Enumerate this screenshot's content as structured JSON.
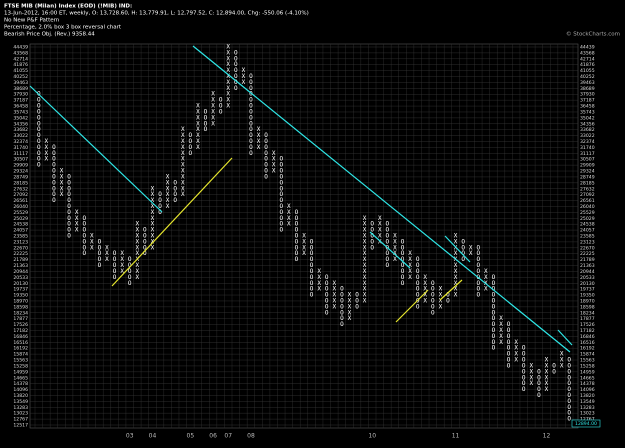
{
  "chart_data": {
    "type": "point-and-figure",
    "title": "FTSE MIB (Milan) Index (EOD) (!MIB)  IND:",
    "subtitle": "13-Jun-2012, 16:00 ET, weekly, O: 13,728.60, H: 13,779.91, L: 12,797.52, C: 12,894.00, Chg: -550.06 (-4.10%)",
    "pattern": "No New P&F Pattern",
    "settings_text": "Percentage, 2.0% box 3 box reversal chart",
    "objective": "Bearish Price Obj. (Rev.) 9358.44",
    "watermark": "© StockCharts.com",
    "last_price_label": "12894.00",
    "log_scale": true,
    "grid": true,
    "ylim": [
      12517,
      44439
    ],
    "yticks": [
      12517,
      12767,
      13023,
      13283,
      13549,
      13820,
      14096,
      14378,
      14665,
      14959,
      15258,
      15563,
      15874,
      16192,
      16516,
      16846,
      17182,
      17526,
      17877,
      18234,
      18598,
      18970,
      19350,
      19737,
      20130,
      20533,
      20944,
      21363,
      21789,
      22225,
      22670,
      23123,
      23585,
      24057,
      24538,
      25029,
      25529,
      26040,
      26561,
      27092,
      27632,
      28185,
      28749,
      29324,
      29909,
      30507,
      31117,
      31740,
      32374,
      33022,
      33682,
      34356,
      35042,
      35743,
      36458,
      37187,
      37930,
      38689,
      39463,
      40252,
      41055,
      41876,
      42714,
      43568,
      44439
    ],
    "x_color": "#ffffff",
    "o_color": "#ffffff",
    "columns": [
      {
        "type": "O",
        "low": 29909,
        "high": 37930
      },
      {
        "type": "X",
        "low": 30507,
        "high": 32374
      },
      {
        "type": "O",
        "low": 26561,
        "high": 31740
      },
      {
        "type": "X",
        "low": 27092,
        "high": 29324
      },
      {
        "type": "O",
        "low": 23585,
        "high": 28749
      },
      {
        "type": "X",
        "low": 24057,
        "high": 25529
      },
      {
        "type": "O",
        "low": 22225,
        "high": 25029
      },
      {
        "type": "X",
        "low": 22670,
        "high": 23585
      },
      {
        "type": "O",
        "low": 21363,
        "high": 23123
      },
      {
        "type": "X",
        "low": 21789,
        "high": 22670
      },
      {
        "type": "O",
        "low": 20533,
        "high": 22225
      },
      {
        "type": "X",
        "low": 20944,
        "high": 22225
      },
      {
        "type": "O",
        "low": 20130,
        "high": 21789
      },
      {
        "type": "X",
        "low": 20533,
        "high": 24538
      },
      {
        "type": "O",
        "low": 22225,
        "high": 24057
      },
      {
        "type": "X",
        "low": 22670,
        "high": 27632
      },
      {
        "type": "O",
        "low": 25529,
        "high": 27092
      },
      {
        "type": "X",
        "low": 26040,
        "high": 28749
      },
      {
        "type": "O",
        "low": 26561,
        "high": 28185
      },
      {
        "type": "X",
        "low": 27092,
        "high": 33682
      },
      {
        "type": "O",
        "low": 31117,
        "high": 33022
      },
      {
        "type": "X",
        "low": 31740,
        "high": 36458
      },
      {
        "type": "O",
        "low": 33682,
        "high": 35743
      },
      {
        "type": "X",
        "low": 34356,
        "high": 37930
      },
      {
        "type": "O",
        "low": 35743,
        "high": 37187
      },
      {
        "type": "X",
        "low": 36458,
        "high": 44439
      },
      {
        "type": "O",
        "low": 38689,
        "high": 43568
      },
      {
        "type": "X",
        "low": 39463,
        "high": 41055
      },
      {
        "type": "O",
        "low": 31117,
        "high": 40252
      },
      {
        "type": "X",
        "low": 31740,
        "high": 33682
      },
      {
        "type": "O",
        "low": 28749,
        "high": 33022
      },
      {
        "type": "X",
        "low": 29324,
        "high": 31117
      },
      {
        "type": "O",
        "low": 24057,
        "high": 30507
      },
      {
        "type": "X",
        "low": 24538,
        "high": 26040
      },
      {
        "type": "O",
        "low": 21789,
        "high": 25529
      },
      {
        "type": "X",
        "low": 22225,
        "high": 23585
      },
      {
        "type": "O",
        "low": 19350,
        "high": 23123
      },
      {
        "type": "X",
        "low": 19737,
        "high": 20944
      },
      {
        "type": "O",
        "low": 18234,
        "high": 20533
      },
      {
        "type": "X",
        "low": 18598,
        "high": 20130
      },
      {
        "type": "O",
        "low": 17526,
        "high": 19737
      },
      {
        "type": "X",
        "low": 17877,
        "high": 19350
      },
      {
        "type": "O",
        "low": 18598,
        "high": 19350
      },
      {
        "type": "X",
        "low": 18970,
        "high": 25029
      },
      {
        "type": "O",
        "low": 22670,
        "high": 24538
      },
      {
        "type": "X",
        "low": 23123,
        "high": 25029
      },
      {
        "type": "O",
        "low": 21363,
        "high": 24538
      },
      {
        "type": "X",
        "low": 21789,
        "high": 23585
      },
      {
        "type": "O",
        "low": 20130,
        "high": 23123
      },
      {
        "type": "X",
        "low": 20533,
        "high": 22225
      },
      {
        "type": "O",
        "low": 18598,
        "high": 21789
      },
      {
        "type": "X",
        "low": 18970,
        "high": 20533
      },
      {
        "type": "O",
        "low": 18234,
        "high": 20130
      },
      {
        "type": "X",
        "low": 18598,
        "high": 19737
      },
      {
        "type": "O",
        "low": 18970,
        "high": 19350
      },
      {
        "type": "X",
        "low": 19350,
        "high": 23585
      },
      {
        "type": "O",
        "low": 21789,
        "high": 23123
      },
      {
        "type": "X",
        "low": 22225,
        "high": 22670
      },
      {
        "type": "O",
        "low": 19350,
        "high": 22670
      },
      {
        "type": "X",
        "low": 19737,
        "high": 20944
      },
      {
        "type": "O",
        "low": 16192,
        "high": 20533
      },
      {
        "type": "X",
        "low": 16516,
        "high": 17877
      },
      {
        "type": "O",
        "low": 15258,
        "high": 17526
      },
      {
        "type": "X",
        "low": 15563,
        "high": 16516
      },
      {
        "type": "O",
        "low": 14096,
        "high": 16192
      },
      {
        "type": "X",
        "low": 14378,
        "high": 15258
      },
      {
        "type": "O",
        "low": 13820,
        "high": 14959
      },
      {
        "type": "X",
        "low": 14096,
        "high": 15563
      },
      {
        "type": "O",
        "low": 14959,
        "high": 15258
      },
      {
        "type": "X",
        "low": 15258,
        "high": 15874
      },
      {
        "type": "O",
        "low": 12767,
        "high": 15563
      }
    ],
    "year_labels": [
      {
        "label": "03",
        "column": 12
      },
      {
        "label": "04",
        "column": 15
      },
      {
        "label": "05",
        "column": 20
      },
      {
        "label": "06",
        "column": 23
      },
      {
        "label": "07",
        "column": 25
      },
      {
        "label": "08",
        "column": 28
      },
      {
        "label": "10",
        "column": 44
      },
      {
        "label": "11",
        "column": 55
      },
      {
        "label": "12",
        "column": 67
      }
    ]
  }
}
